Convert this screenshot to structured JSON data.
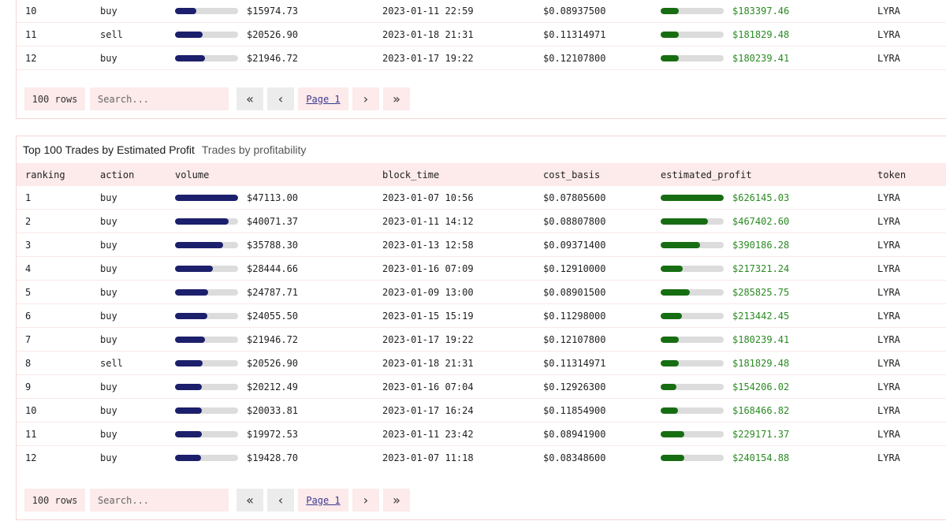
{
  "colors": {
    "volume_bar": "#1c1f6b",
    "profit_bar": "#176d12",
    "profit_text": "#2a8a22",
    "header_bg": "#fdeaea"
  },
  "top_table": {
    "rows": [
      {
        "ranking": "10",
        "action": "buy",
        "volume": "$15974.73",
        "volume_frac": 0.34,
        "block_time": "2023-01-11 22:59",
        "cost_basis": "$0.08937500",
        "estimated_profit": "$183397.46",
        "profit_frac": 0.29,
        "token": "LYRA"
      },
      {
        "ranking": "11",
        "action": "sell",
        "volume": "$20526.90",
        "volume_frac": 0.44,
        "block_time": "2023-01-18 21:31",
        "cost_basis": "$0.11314971",
        "estimated_profit": "$181829.48",
        "profit_frac": 0.29,
        "token": "LYRA"
      },
      {
        "ranking": "12",
        "action": "buy",
        "volume": "$21946.72",
        "volume_frac": 0.47,
        "block_time": "2023-01-17 19:22",
        "cost_basis": "$0.12107800",
        "estimated_profit": "$180239.41",
        "profit_frac": 0.29,
        "token": "LYRA"
      }
    ],
    "pager": {
      "rows_label": "100 rows",
      "search_placeholder": "Search...",
      "first": "«",
      "prev": "‹",
      "page": "Page 1",
      "next": "›",
      "last": "»"
    }
  },
  "bottom_table": {
    "title": "Top 100 Trades by Estimated Profit",
    "subtitle": "Trades by profitability",
    "columns": [
      "ranking",
      "action",
      "volume",
      "block_time",
      "cost_basis",
      "estimated_profit",
      "token"
    ],
    "rows": [
      {
        "ranking": "1",
        "action": "buy",
        "volume": "$47113.00",
        "volume_frac": 1.0,
        "block_time": "2023-01-07 10:56",
        "cost_basis": "$0.07805600",
        "estimated_profit": "$626145.03",
        "profit_frac": 1.0,
        "token": "LYRA"
      },
      {
        "ranking": "2",
        "action": "buy",
        "volume": "$40071.37",
        "volume_frac": 0.85,
        "block_time": "2023-01-11 14:12",
        "cost_basis": "$0.08807800",
        "estimated_profit": "$467402.60",
        "profit_frac": 0.75,
        "token": "LYRA"
      },
      {
        "ranking": "3",
        "action": "buy",
        "volume": "$35788.30",
        "volume_frac": 0.76,
        "block_time": "2023-01-13 12:58",
        "cost_basis": "$0.09371400",
        "estimated_profit": "$390186.28",
        "profit_frac": 0.62,
        "token": "LYRA"
      },
      {
        "ranking": "4",
        "action": "buy",
        "volume": "$28444.66",
        "volume_frac": 0.6,
        "block_time": "2023-01-16 07:09",
        "cost_basis": "$0.12910000",
        "estimated_profit": "$217321.24",
        "profit_frac": 0.35,
        "token": "LYRA"
      },
      {
        "ranking": "5",
        "action": "buy",
        "volume": "$24787.71",
        "volume_frac": 0.53,
        "block_time": "2023-01-09 13:00",
        "cost_basis": "$0.08901500",
        "estimated_profit": "$285825.75",
        "profit_frac": 0.46,
        "token": "LYRA"
      },
      {
        "ranking": "6",
        "action": "buy",
        "volume": "$24055.50",
        "volume_frac": 0.51,
        "block_time": "2023-01-15 15:19",
        "cost_basis": "$0.11298000",
        "estimated_profit": "$213442.45",
        "profit_frac": 0.34,
        "token": "LYRA"
      },
      {
        "ranking": "7",
        "action": "buy",
        "volume": "$21946.72",
        "volume_frac": 0.47,
        "block_time": "2023-01-17 19:22",
        "cost_basis": "$0.12107800",
        "estimated_profit": "$180239.41",
        "profit_frac": 0.29,
        "token": "LYRA"
      },
      {
        "ranking": "8",
        "action": "sell",
        "volume": "$20526.90",
        "volume_frac": 0.44,
        "block_time": "2023-01-18 21:31",
        "cost_basis": "$0.11314971",
        "estimated_profit": "$181829.48",
        "profit_frac": 0.29,
        "token": "LYRA"
      },
      {
        "ranking": "9",
        "action": "buy",
        "volume": "$20212.49",
        "volume_frac": 0.43,
        "block_time": "2023-01-16 07:04",
        "cost_basis": "$0.12926300",
        "estimated_profit": "$154206.02",
        "profit_frac": 0.25,
        "token": "LYRA"
      },
      {
        "ranking": "10",
        "action": "buy",
        "volume": "$20033.81",
        "volume_frac": 0.43,
        "block_time": "2023-01-17 16:24",
        "cost_basis": "$0.11854900",
        "estimated_profit": "$168466.82",
        "profit_frac": 0.27,
        "token": "LYRA"
      },
      {
        "ranking": "11",
        "action": "buy",
        "volume": "$19972.53",
        "volume_frac": 0.42,
        "block_time": "2023-01-11 23:42",
        "cost_basis": "$0.08941900",
        "estimated_profit": "$229171.37",
        "profit_frac": 0.37,
        "token": "LYRA"
      },
      {
        "ranking": "12",
        "action": "buy",
        "volume": "$19428.70",
        "volume_frac": 0.41,
        "block_time": "2023-01-07 11:18",
        "cost_basis": "$0.08348600",
        "estimated_profit": "$240154.88",
        "profit_frac": 0.38,
        "token": "LYRA"
      }
    ],
    "pager": {
      "rows_label": "100 rows",
      "search_placeholder": "Search...",
      "first": "«",
      "prev": "‹",
      "page": "Page 1",
      "next": "›",
      "last": "»"
    }
  }
}
